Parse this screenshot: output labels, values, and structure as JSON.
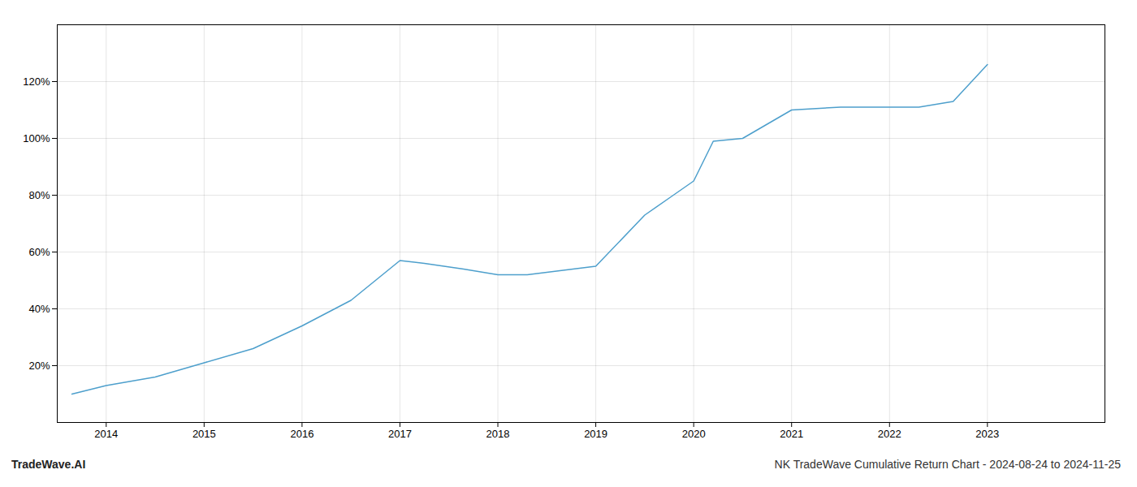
{
  "chart_data": {
    "type": "line",
    "title": "NK TradeWave Cumulative Return Chart - 2024-08-24 to 2024-11-25",
    "annotations": [
      "TradeWave.AI"
    ],
    "x": [
      2013.65,
      2014.0,
      2014.5,
      2015.0,
      2015.5,
      2016.0,
      2016.5,
      2017.0,
      2017.25,
      2017.65,
      2018.0,
      2018.3,
      2019.0,
      2019.5,
      2019.75,
      2020.0,
      2020.2,
      2020.5,
      2021.0,
      2021.5,
      2022.0,
      2022.3,
      2022.65,
      2023.0
    ],
    "values": [
      10,
      13,
      16,
      21,
      26,
      34,
      43,
      57,
      56,
      54,
      52,
      52,
      55,
      73,
      79,
      85,
      99,
      100,
      110,
      111,
      111,
      111,
      113,
      126
    ],
    "color": "#4d9fcc",
    "xlim": [
      2013.5,
      2024.2
    ],
    "ylim": [
      0,
      140
    ],
    "xticks": [
      2014,
      2015,
      2016,
      2017,
      2018,
      2019,
      2020,
      2021,
      2022,
      2023
    ],
    "yticks": [
      {
        "value": 20,
        "label": "20%"
      },
      {
        "value": 40,
        "label": "40%"
      },
      {
        "value": 60,
        "label": "60%"
      },
      {
        "value": 80,
        "label": "80%"
      },
      {
        "value": 100,
        "label": "100%"
      },
      {
        "value": 120,
        "label": "120%"
      }
    ],
    "grid": true
  }
}
